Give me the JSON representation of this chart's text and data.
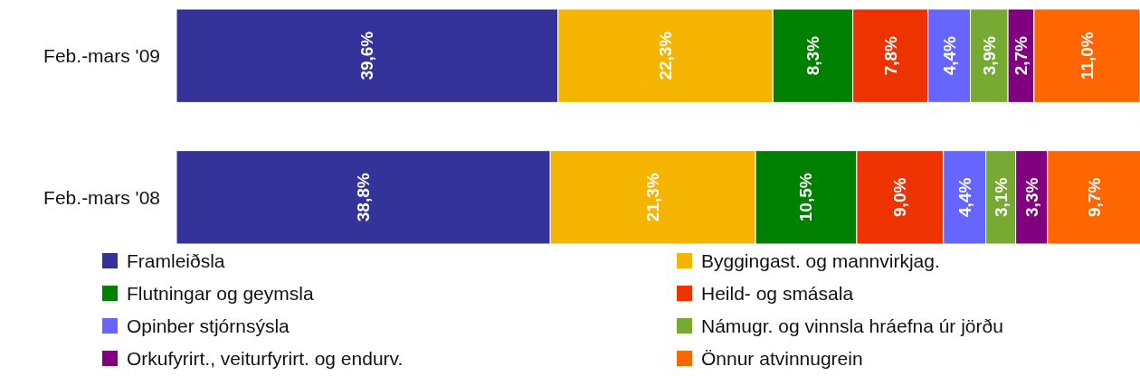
{
  "chart_data": {
    "type": "bar",
    "orientation": "horizontal",
    "stacked": true,
    "categories": [
      "Feb.-mars '09",
      "Feb.-mars '08"
    ],
    "xlim": [
      0,
      100
    ],
    "tick_labels": "y",
    "legend": "bottom",
    "series": [
      {
        "name": "Framleiðsla",
        "color": "#333399",
        "values": [
          39.6,
          38.8
        ],
        "value_labels": [
          "39,6%",
          "38,8%"
        ]
      },
      {
        "name": "Byggingast. og mannvirkjag.",
        "color": "#f5b400",
        "values": [
          22.3,
          21.3
        ],
        "value_labels": [
          "22,3%",
          "21,3%"
        ]
      },
      {
        "name": "Flutningar og geymsla",
        "color": "#008000",
        "values": [
          8.3,
          10.5
        ],
        "value_labels": [
          "8,3%",
          "10,5%"
        ]
      },
      {
        "name": "Heild- og smásala",
        "color": "#ee3300",
        "values": [
          7.8,
          9.0
        ],
        "value_labels": [
          "7,8%",
          "9,0%"
        ]
      },
      {
        "name": "Opinber stjórnsýsla",
        "color": "#6666ff",
        "values": [
          4.4,
          4.4
        ],
        "value_labels": [
          "4,4%",
          "4,4%"
        ]
      },
      {
        "name": "Námugr. og vinnsla hráefna úr jörðu",
        "color": "#77aa33",
        "values": [
          3.9,
          3.1
        ],
        "value_labels": [
          "3,9%",
          "3,1%"
        ]
      },
      {
        "name": "Orkufyrirt., veiturfyrirt. og endurv.",
        "color": "#800080",
        "values": [
          2.7,
          3.3
        ],
        "value_labels": [
          "2,7%",
          "3,3%"
        ]
      },
      {
        "name": "Önnur atvinnugrein",
        "color": "#ff6600",
        "values": [
          11.0,
          9.7
        ],
        "value_labels": [
          "11,0%",
          "9,7%"
        ]
      }
    ]
  }
}
